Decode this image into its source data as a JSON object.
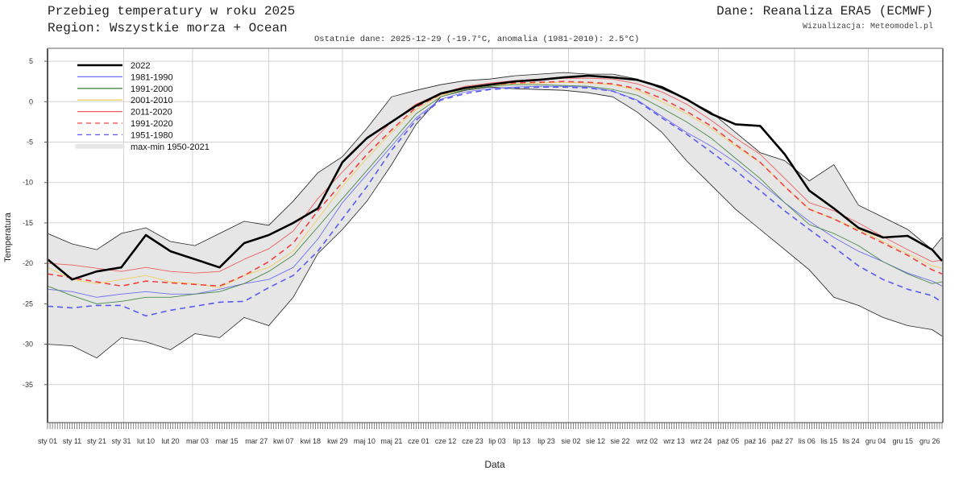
{
  "header": {
    "title": "Przebieg temperatury w roku 2025",
    "region": "Region: Wszystkie morza + Ocean",
    "source": "Dane: Reanaliza ERA5 (ECMWF)",
    "visualization": "Wizualizacja: Meteomodel.pl",
    "last_data": "Ostatnie dane: 2025-12-29 (-19.7°C, anomalia (1981-2010): 2.5°C)"
  },
  "chart_data": {
    "type": "line",
    "xlabel": "Data",
    "ylabel": "Temperatura",
    "ylim": [
      -39.7,
      6.6
    ],
    "xlim": [
      "2025-01-01",
      "2025-12-31"
    ],
    "yticks": [
      5,
      0,
      -5,
      -10,
      -15,
      -20,
      -25,
      -30,
      -35
    ],
    "grid": true,
    "legend_position": "top-left",
    "xticks": [
      {
        "label": "sty 01",
        "date": "2025-01-01"
      },
      {
        "label": "sty 11",
        "date": "2025-01-11"
      },
      {
        "label": "sty 21",
        "date": "2025-01-21"
      },
      {
        "label": "sty 31",
        "date": "2025-01-31"
      },
      {
        "label": "lut 10",
        "date": "2025-02-10"
      },
      {
        "label": "lut 20",
        "date": "2025-02-20"
      },
      {
        "label": "mar 03",
        "date": "2025-03-03"
      },
      {
        "label": "mar 15",
        "date": "2025-03-15"
      },
      {
        "label": "mar 27",
        "date": "2025-03-27"
      },
      {
        "label": "kwi 07",
        "date": "2025-04-07"
      },
      {
        "label": "kwi 18",
        "date": "2025-04-18"
      },
      {
        "label": "kwi 29",
        "date": "2025-04-29"
      },
      {
        "label": "maj 10",
        "date": "2025-05-10"
      },
      {
        "label": "maj 21",
        "date": "2025-05-21"
      },
      {
        "label": "cze 01",
        "date": "2025-06-01"
      },
      {
        "label": "cze 12",
        "date": "2025-06-12"
      },
      {
        "label": "cze 23",
        "date": "2025-06-23"
      },
      {
        "label": "lip 03",
        "date": "2025-07-03"
      },
      {
        "label": "lip 13",
        "date": "2025-07-13"
      },
      {
        "label": "lip 23",
        "date": "2025-07-23"
      },
      {
        "label": "sie 02",
        "date": "2025-08-02"
      },
      {
        "label": "sie 12",
        "date": "2025-08-12"
      },
      {
        "label": "sie 22",
        "date": "2025-08-22"
      },
      {
        "label": "wrz 02",
        "date": "2025-09-02"
      },
      {
        "label": "wrz 13",
        "date": "2025-09-13"
      },
      {
        "label": "wrz 24",
        "date": "2025-09-24"
      },
      {
        "label": "paź 05",
        "date": "2025-10-05"
      },
      {
        "label": "paź 16",
        "date": "2025-10-16"
      },
      {
        "label": "paź 27",
        "date": "2025-10-27"
      },
      {
        "label": "lis 06",
        "date": "2025-11-06"
      },
      {
        "label": "lis 15",
        "date": "2025-11-15"
      },
      {
        "label": "lis 24",
        "date": "2025-11-24"
      },
      {
        "label": "gru 04",
        "date": "2025-12-04"
      },
      {
        "label": "gru 15",
        "date": "2025-12-15"
      },
      {
        "label": "gru 26",
        "date": "2025-12-26"
      }
    ],
    "x": [
      "2025-01-01",
      "2025-01-11",
      "2025-01-21",
      "2025-01-31",
      "2025-02-10",
      "2025-02-20",
      "2025-03-02",
      "2025-03-12",
      "2025-03-22",
      "2025-04-01",
      "2025-04-11",
      "2025-04-21",
      "2025-05-01",
      "2025-05-11",
      "2025-05-21",
      "2025-05-31",
      "2025-06-10",
      "2025-06-20",
      "2025-06-30",
      "2025-07-10",
      "2025-07-20",
      "2025-07-30",
      "2025-08-09",
      "2025-08-19",
      "2025-08-29",
      "2025-09-08",
      "2025-09-18",
      "2025-09-28",
      "2025-10-08",
      "2025-10-18",
      "2025-10-28",
      "2025-11-07",
      "2025-11-17",
      "2025-11-27",
      "2025-12-07",
      "2025-12-17",
      "2025-12-27",
      "2025-12-31"
    ],
    "band": {
      "name": "max-min 1950-2021",
      "color": "#e6e6e6",
      "max": [
        -16.3,
        -17.6,
        -18.3,
        -16.3,
        -15.6,
        -17.3,
        -17.8,
        -16.3,
        -14.8,
        -15.3,
        -12.3,
        -8.8,
        -6.8,
        -3.3,
        0.6,
        1.4,
        2.1,
        2.6,
        2.8,
        3.2,
        3.4,
        3.6,
        3.4,
        3.4,
        2.8,
        1.6,
        0.3,
        -1.3,
        -3.8,
        -6.3,
        -7.3,
        -9.8,
        -7.8,
        -12.8,
        -14.3,
        -15.8,
        -18.3,
        -16.8
      ],
      "min": [
        -30.0,
        -30.2,
        -31.7,
        -29.2,
        -29.7,
        -30.7,
        -28.7,
        -29.2,
        -26.7,
        -27.7,
        -24.2,
        -18.8,
        -15.8,
        -12.3,
        -7.8,
        -2.8,
        0.6,
        1.4,
        1.8,
        1.6,
        1.5,
        1.4,
        1.1,
        0.6,
        -1.3,
        -3.8,
        -7.3,
        -10.3,
        -13.3,
        -15.8,
        -18.3,
        -20.8,
        -24.2,
        -25.2,
        -26.7,
        -27.7,
        -28.2,
        -29.0
      ]
    },
    "series": [
      {
        "name": "2022",
        "color": "#000000",
        "dashed": false,
        "width": 2.6,
        "values": [
          -19.5,
          -22.0,
          -21.0,
          -20.5,
          -16.5,
          -18.5,
          -19.5,
          -20.5,
          -17.5,
          -16.5,
          -15.0,
          -13.2,
          -7.5,
          -4.5,
          -2.5,
          -0.5,
          1.0,
          1.7,
          2.1,
          2.5,
          2.7,
          3.0,
          3.2,
          3.0,
          2.7,
          1.8,
          0.3,
          -1.5,
          -2.8,
          -3.0,
          -6.5,
          -11.0,
          -13.2,
          -15.6,
          -16.8,
          -16.6,
          -18.3,
          -19.7
        ]
      },
      {
        "name": "1981-1990",
        "color": "#6e6ef5",
        "dashed": false,
        "width": 0.9,
        "values": [
          -23.2,
          -23.5,
          -24.2,
          -23.8,
          -23.5,
          -23.8,
          -23.8,
          -23.2,
          -22.5,
          -22.0,
          -20.5,
          -17.0,
          -12.5,
          -9.0,
          -5.5,
          -2.0,
          0.3,
          1.2,
          1.6,
          1.8,
          1.9,
          1.9,
          1.8,
          1.3,
          0.2,
          -1.8,
          -3.8,
          -5.5,
          -7.5,
          -10.0,
          -12.5,
          -14.8,
          -16.8,
          -18.5,
          -19.8,
          -21.2,
          -22.2,
          -22.8
        ]
      },
      {
        "name": "1991-2000",
        "color": "#4a8a4a",
        "dashed": false,
        "width": 0.9,
        "values": [
          -22.8,
          -24.0,
          -25.0,
          -24.7,
          -24.2,
          -24.2,
          -23.8,
          -23.5,
          -22.5,
          -21.0,
          -19.0,
          -15.5,
          -12.0,
          -8.5,
          -5.0,
          -1.5,
          0.6,
          1.5,
          1.9,
          2.1,
          2.1,
          2.0,
          1.9,
          1.5,
          0.8,
          -0.8,
          -2.5,
          -4.5,
          -7.0,
          -9.5,
          -12.5,
          -15.2,
          -16.3,
          -17.8,
          -19.8,
          -21.3,
          -22.5,
          -22.3
        ]
      },
      {
        "name": "2001-2010",
        "color": "#f0d060",
        "dashed": false,
        "width": 0.9,
        "values": [
          -20.5,
          -22.0,
          -22.5,
          -22.0,
          -21.5,
          -22.3,
          -22.5,
          -23.0,
          -21.5,
          -20.5,
          -18.5,
          -14.5,
          -10.5,
          -7.0,
          -3.8,
          -1.0,
          0.8,
          1.6,
          2.0,
          2.2,
          2.3,
          2.4,
          2.3,
          2.1,
          1.4,
          0.0,
          -1.5,
          -3.3,
          -5.5,
          -7.5,
          -10.5,
          -13.3,
          -14.5,
          -15.8,
          -17.3,
          -18.8,
          -20.3,
          -20.6
        ]
      },
      {
        "name": "2011-2020",
        "color": "#f06060",
        "dashed": false,
        "width": 0.9,
        "values": [
          -20.0,
          -20.2,
          -20.6,
          -21.0,
          -20.5,
          -21.0,
          -21.2,
          -21.0,
          -19.5,
          -18.2,
          -16.0,
          -12.0,
          -8.7,
          -5.5,
          -2.5,
          -0.3,
          1.0,
          1.9,
          2.3,
          2.6,
          2.8,
          2.9,
          2.9,
          2.8,
          2.2,
          1.2,
          -0.3,
          -2.3,
          -4.5,
          -6.5,
          -9.5,
          -12.5,
          -13.5,
          -15.0,
          -16.7,
          -18.3,
          -19.8,
          -19.6
        ]
      },
      {
        "name": "1991-2020",
        "color": "#f04040",
        "dashed": true,
        "width": 1.6,
        "values": [
          -21.3,
          -21.8,
          -22.3,
          -22.8,
          -22.2,
          -22.4,
          -22.6,
          -22.8,
          -21.5,
          -19.8,
          -17.5,
          -13.5,
          -10.0,
          -6.5,
          -3.5,
          -0.7,
          0.9,
          1.7,
          2.1,
          2.3,
          2.4,
          2.5,
          2.4,
          2.2,
          1.6,
          0.4,
          -1.2,
          -3.0,
          -5.3,
          -7.5,
          -10.5,
          -13.3,
          -14.5,
          -16.0,
          -17.5,
          -19.0,
          -20.8,
          -21.3
        ]
      },
      {
        "name": "1951-1980",
        "color": "#5a5af0",
        "dashed": true,
        "width": 1.6,
        "values": [
          -25.3,
          -25.5,
          -25.2,
          -25.2,
          -26.5,
          -25.8,
          -25.3,
          -24.8,
          -24.7,
          -23.0,
          -21.5,
          -18.5,
          -14.5,
          -10.5,
          -6.0,
          -2.3,
          0.2,
          1.0,
          1.5,
          1.7,
          1.8,
          1.8,
          1.7,
          1.3,
          0.1,
          -2.0,
          -4.0,
          -6.2,
          -8.5,
          -11.0,
          -13.5,
          -15.8,
          -18.0,
          -20.3,
          -22.0,
          -23.2,
          -24.0,
          -24.8
        ]
      }
    ]
  }
}
